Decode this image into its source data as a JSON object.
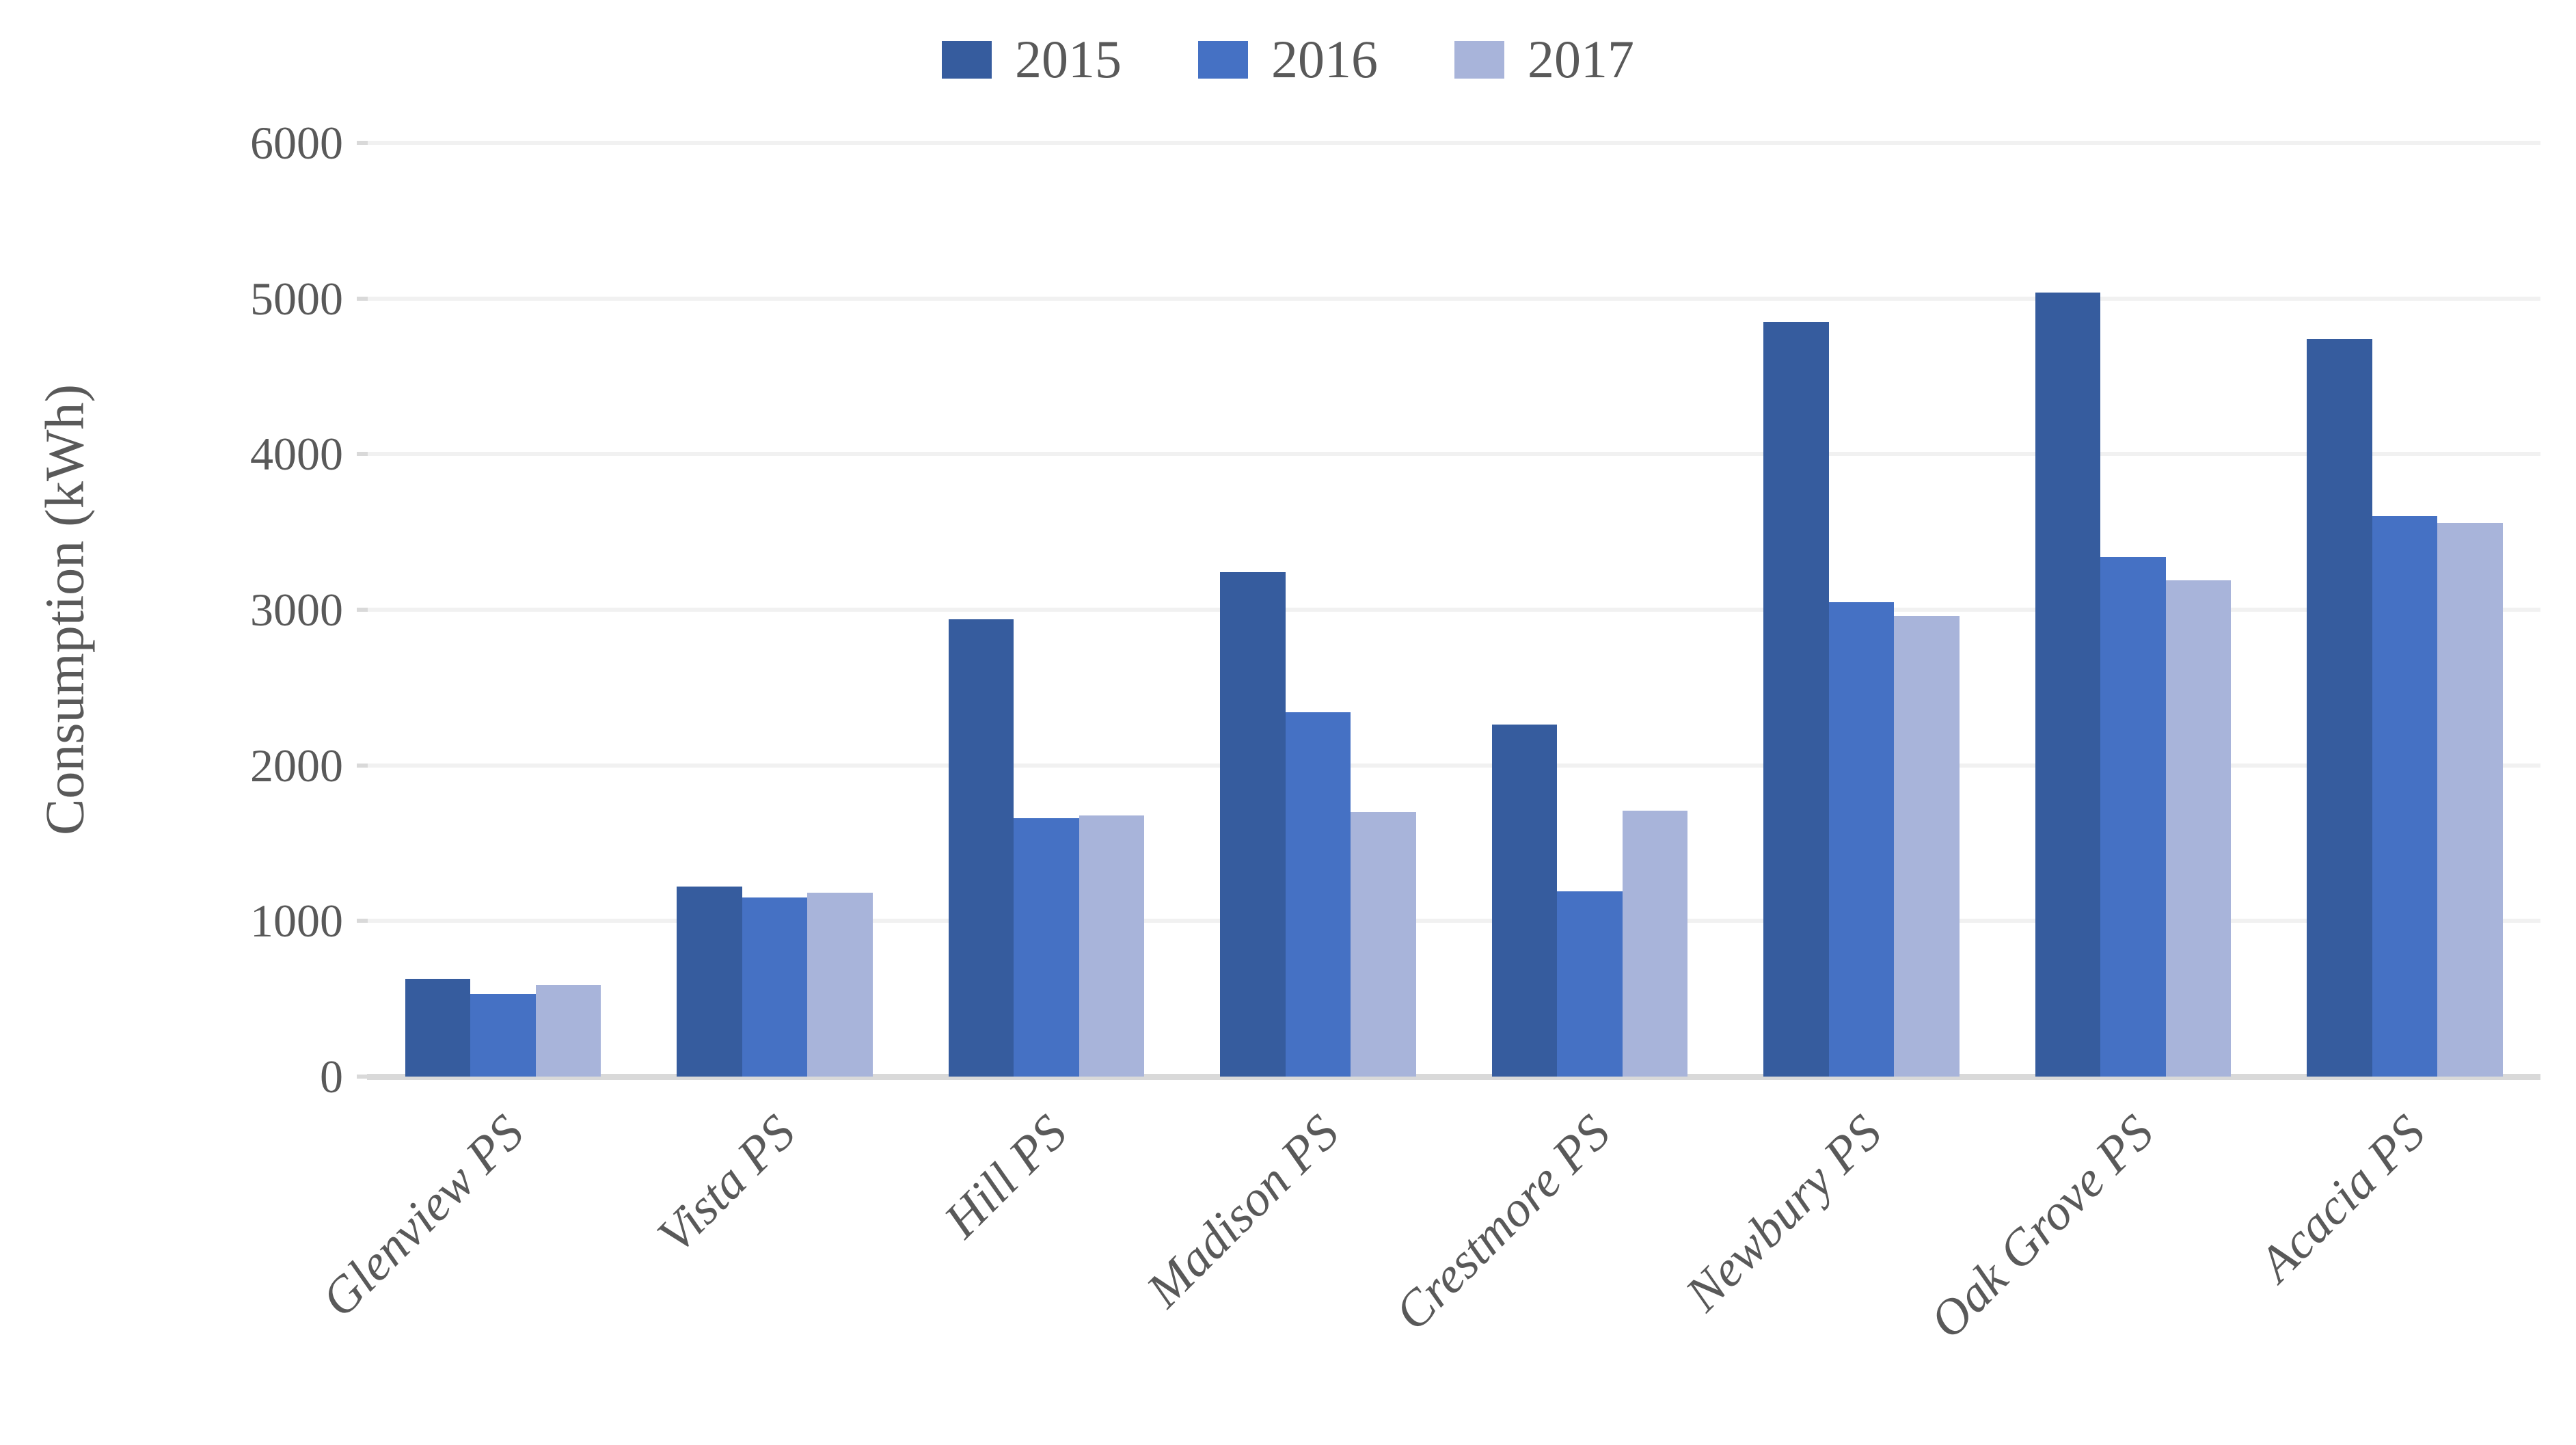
{
  "chart_data": {
    "type": "bar",
    "title": "",
    "ylabel": "Consumption (kWh)",
    "categories": [
      "Glenview PS",
      "Vista PS",
      "Hill PS",
      "Madison PS",
      "Crestmore PS",
      "Newbury PS",
      "Oak Grove PS",
      "Acacia PS"
    ],
    "series": [
      {
        "name": "2015",
        "color": "#365C9E",
        "values": [
          630,
          1220,
          2940,
          3240,
          2260,
          4850,
          5040,
          4740
        ]
      },
      {
        "name": "2016",
        "color": "#4571C4",
        "values": [
          530,
          1150,
          1660,
          2340,
          1190,
          3050,
          3340,
          3600
        ]
      },
      {
        "name": "2017",
        "color": "#A8B4DA",
        "values": [
          590,
          1180,
          1680,
          1700,
          1710,
          2960,
          3190,
          3560
        ]
      }
    ],
    "ylim": [
      0,
      6000
    ],
    "ytick_step": 1000,
    "yticks": [
      "0",
      "1000",
      "2000",
      "3000",
      "4000",
      "5000",
      "6000"
    ],
    "grid": "horizontal-light",
    "legend_position": "top-center"
  },
  "colors": {
    "background": "#FFFFFF",
    "gridline": "#F1F1F1",
    "axis_line": "#D9D9D9",
    "text": "#595959"
  }
}
